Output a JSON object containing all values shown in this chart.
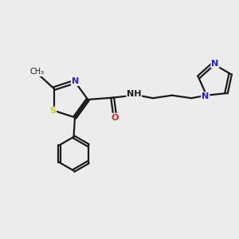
{
  "background_color": "#ececec",
  "bond_color": "#1a1a1a",
  "atom_colors": {
    "N": "#2222dd",
    "O": "#dd2222",
    "S": "#cccc00",
    "C": "#1a1a1a",
    "H": "#1a1a1a"
  },
  "figsize": [
    3.0,
    3.0
  ],
  "dpi": 100
}
